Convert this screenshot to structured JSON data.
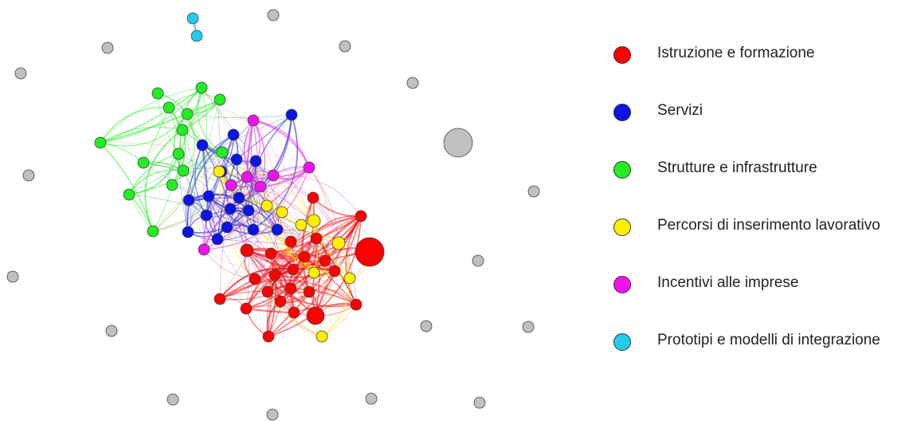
{
  "legend": {
    "items": [
      {
        "label": "Istruzione e formazione",
        "color": "#ff0000"
      },
      {
        "label": "Servizi",
        "color": "#0a14e6"
      },
      {
        "label": "Strutture e infrastrutture",
        "color": "#22ee22"
      },
      {
        "label": "Percorsi di inserimento lavorativo",
        "color": "#ffee00"
      },
      {
        "label": "Incentivi alle imprese",
        "color": "#ee11ee"
      },
      {
        "label": "Prototipi e modelli di integrazione",
        "color": "#22ccee"
      }
    ]
  },
  "isolated_node_color": "#c0c0c0"
}
